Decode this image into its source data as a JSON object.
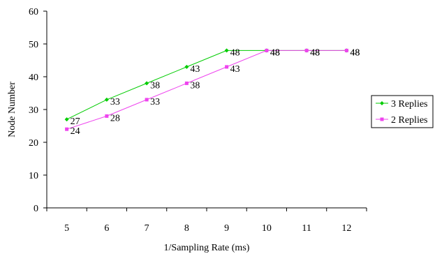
{
  "chart_data": {
    "type": "line",
    "title": "",
    "xlabel": "1/Sampling Rate  (ms)",
    "ylabel": "Node Number",
    "categories": [
      "5",
      "6",
      "7",
      "8",
      "9",
      "10",
      "11",
      "12"
    ],
    "ylim": [
      0,
      60
    ],
    "yticks": [
      "0",
      "10",
      "20",
      "30",
      "40",
      "50",
      "60"
    ],
    "grid": false,
    "legend_position": "right",
    "series": [
      {
        "name": "3 Replies",
        "color": "#00cc00",
        "marker": "diamond",
        "values": [
          27,
          33,
          38,
          43,
          48,
          48,
          48,
          48
        ],
        "labels": [
          "27",
          "33",
          "38",
          "43",
          "48",
          "48",
          "48",
          "48"
        ]
      },
      {
        "name": "2 Replies",
        "color": "#ee44ee",
        "marker": "square",
        "values": [
          24,
          28,
          33,
          38,
          43,
          48,
          48,
          48
        ],
        "labels": [
          "24",
          "28",
          "33",
          "38",
          "43",
          "48",
          "48",
          "48"
        ]
      }
    ]
  }
}
